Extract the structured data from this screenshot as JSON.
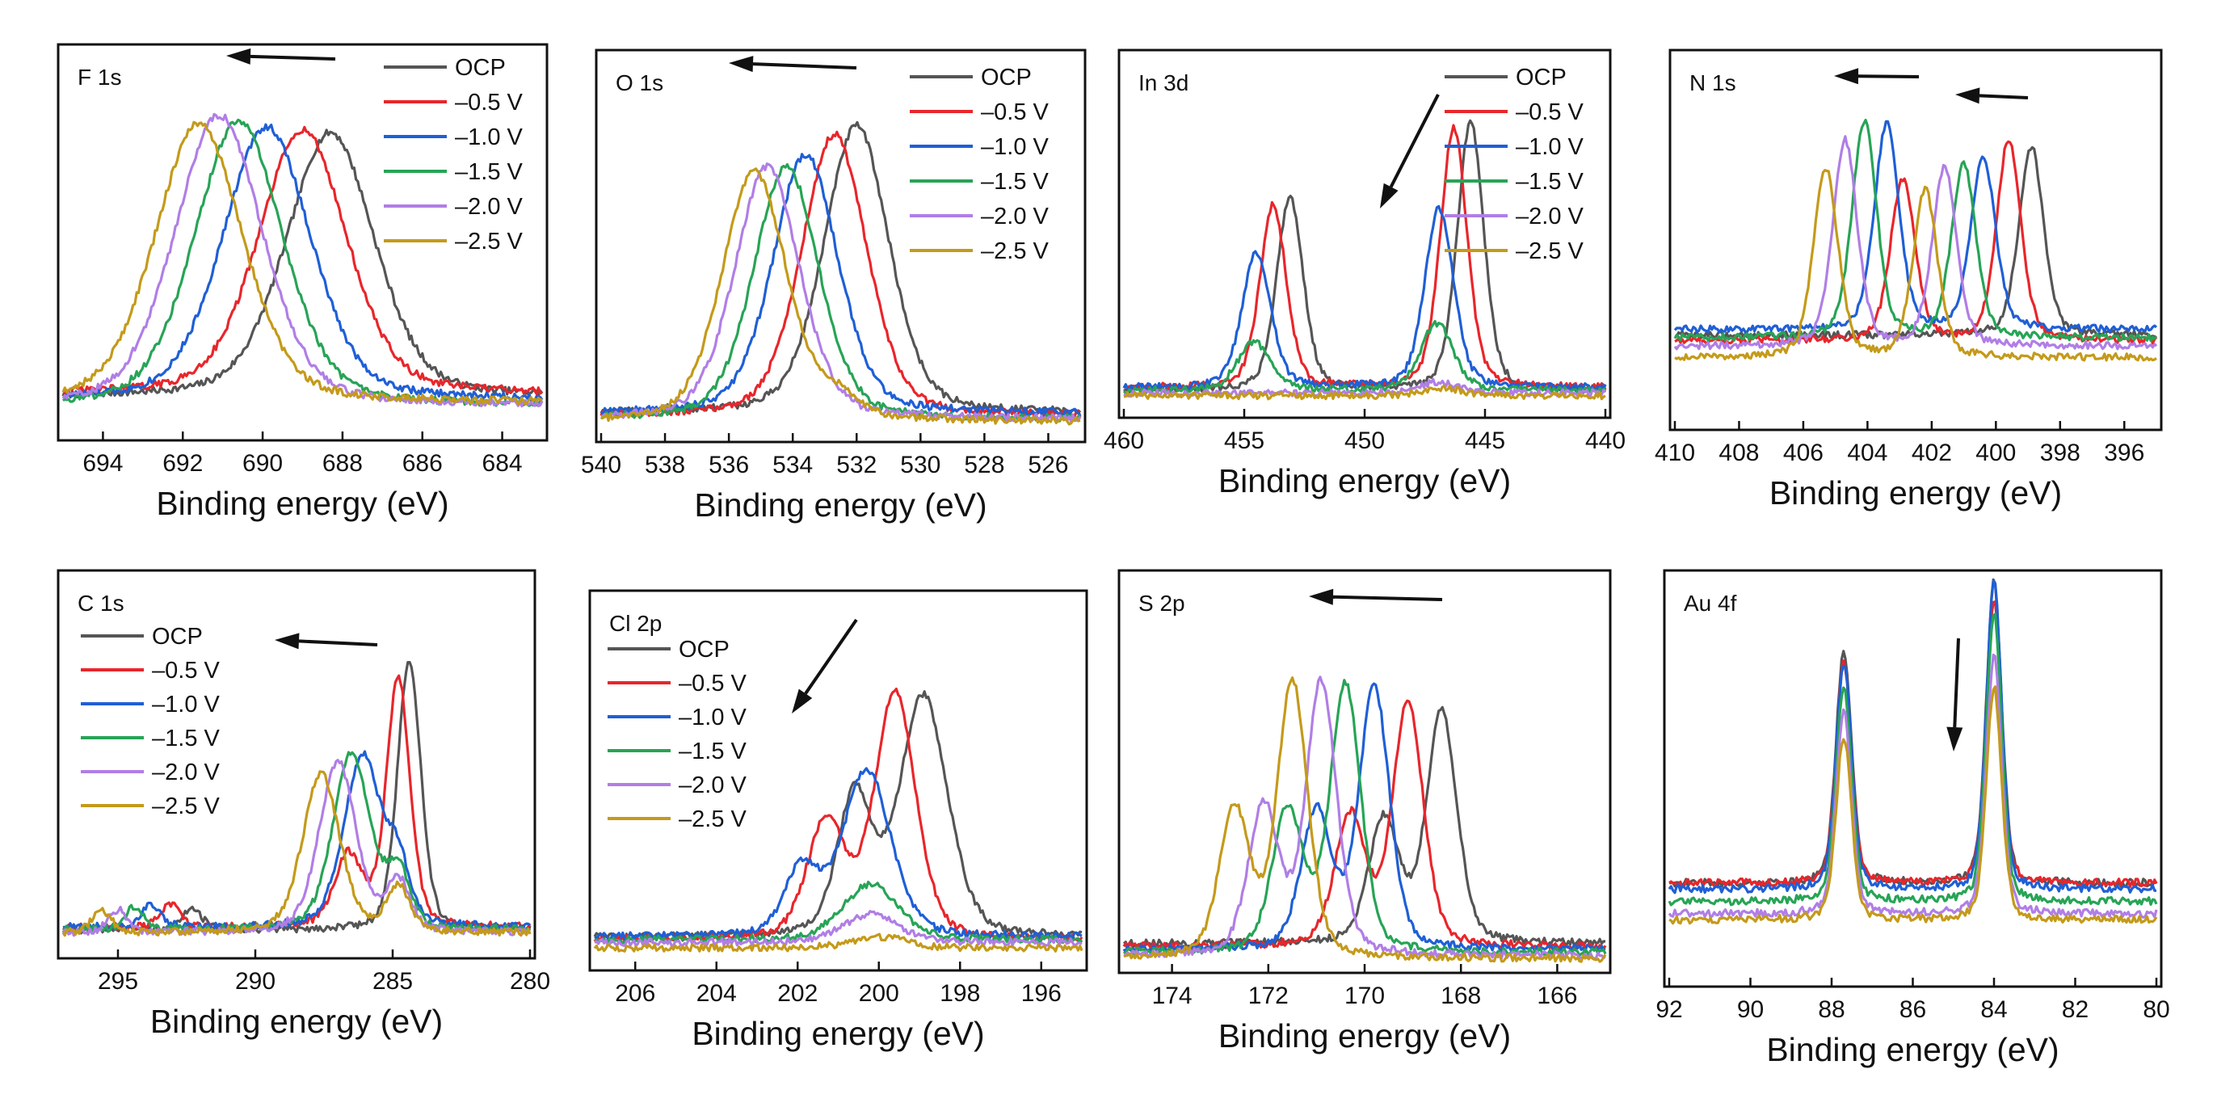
{
  "colors": {
    "OCP": "#555555",
    "-0.5 V": "#e8262b",
    "-1.0 V": "#1f5fd6",
    "-1.5 V": "#27a456",
    "-2.0 V": "#b07ee6",
    "-2.5 V": "#c49a1a"
  },
  "arrow_color": "#111111",
  "chart_data": [
    {
      "type": "line",
      "title": "F 1s",
      "xlabel": "Binding energy (eV)",
      "ylabel": "",
      "xlim": [
        695,
        683
      ],
      "ylim": [
        0,
        1.25
      ],
      "xticks": [
        694,
        692,
        690,
        688,
        686,
        684
      ],
      "xtick_labels": [
        "694",
        "692",
        "690",
        "688",
        "686",
        "684"
      ],
      "legend_position": "top-right",
      "annotation": "arrow pointing left",
      "series": [
        {
          "name": "OCP",
          "peaks": [
            {
              "center": 688.3,
              "height": 0.91,
              "width": 2.6
            }
          ],
          "baseline": 0.11
        },
        {
          "name": "–0.5 V",
          "peaks": [
            {
              "center": 689.0,
              "height": 0.91,
              "width": 2.6
            }
          ],
          "baseline": 0.12
        },
        {
          "name": "–1.0 V",
          "peaks": [
            {
              "center": 689.9,
              "height": 0.94,
              "width": 2.6
            }
          ],
          "baseline": 0.1
        },
        {
          "name": "–1.5 V",
          "peaks": [
            {
              "center": 690.6,
              "height": 0.98,
              "width": 2.6
            }
          ],
          "baseline": 0.08
        },
        {
          "name": "–2.0 V",
          "peaks": [
            {
              "center": 691.1,
              "height": 1.0,
              "width": 2.6
            }
          ],
          "baseline": 0.08
        },
        {
          "name": "–2.5 V",
          "peaks": [
            {
              "center": 691.6,
              "height": 0.96,
              "width": 2.6
            }
          ],
          "baseline": 0.09
        }
      ]
    },
    {
      "type": "line",
      "title": "O 1s",
      "xlabel": "Binding energy (eV)",
      "ylabel": "",
      "xlim": [
        540,
        525
      ],
      "ylim": [
        0,
        1.25
      ],
      "xticks": [
        540,
        538,
        536,
        534,
        532,
        530,
        528,
        526
      ],
      "xtick_labels": [
        "540",
        "538",
        "536",
        "534",
        "532",
        "530",
        "528",
        "526"
      ],
      "legend_position": "top-right",
      "annotation": "arrow pointing left",
      "series": [
        {
          "name": "OCP",
          "peaks": [
            {
              "center": 532.0,
              "height": 1.0,
              "width": 2.4
            }
          ],
          "baseline": 0.06
        },
        {
          "name": "–0.5 V",
          "peaks": [
            {
              "center": 532.7,
              "height": 0.98,
              "width": 2.4
            }
          ],
          "baseline": 0.05
        },
        {
          "name": "–1.0 V",
          "peaks": [
            {
              "center": 533.6,
              "height": 0.9,
              "width": 2.4
            }
          ],
          "baseline": 0.06
        },
        {
          "name": "–1.5 V",
          "peaks": [
            {
              "center": 534.2,
              "height": 0.88,
              "width": 2.4
            }
          ],
          "baseline": 0.04
        },
        {
          "name": "–2.0 V",
          "peaks": [
            {
              "center": 534.8,
              "height": 0.88,
              "width": 2.4
            }
          ],
          "baseline": 0.04
        },
        {
          "name": "–2.5 V",
          "peaks": [
            {
              "center": 535.2,
              "height": 0.87,
              "width": 2.4
            },
            {
              "center": 532.5,
              "height": 0.07,
              "width": 1.5
            }
          ],
          "baseline": 0.03
        }
      ]
    },
    {
      "type": "line",
      "title": "In 3d",
      "xlabel": "Binding energy (eV)",
      "ylabel": "",
      "xlim": [
        460,
        440
      ],
      "ylim": [
        0,
        1.25
      ],
      "xticks": [
        460,
        455,
        450,
        445,
        440
      ],
      "xtick_labels": [
        "460",
        "455",
        "450",
        "445",
        "440"
      ],
      "legend_position": "top-right",
      "annotation": "arrow pointing down-left",
      "series": [
        {
          "name": "OCP",
          "peaks": [
            {
              "center": 445.6,
              "height": 1.0,
              "width": 1.3
            },
            {
              "center": 453.1,
              "height": 0.72,
              "width": 1.3
            }
          ],
          "baseline": 0.06
        },
        {
          "name": "–0.5 V",
          "peaks": [
            {
              "center": 446.3,
              "height": 0.97,
              "width": 1.3
            },
            {
              "center": 453.8,
              "height": 0.68,
              "width": 1.3
            }
          ],
          "baseline": 0.07
        },
        {
          "name": "–1.0 V",
          "peaks": [
            {
              "center": 446.9,
              "height": 0.67,
              "width": 1.4
            },
            {
              "center": 454.5,
              "height": 0.5,
              "width": 1.4
            }
          ],
          "baseline": 0.07
        },
        {
          "name": "–1.5 V",
          "peaks": [
            {
              "center": 447.0,
              "height": 0.25,
              "width": 1.6
            },
            {
              "center": 454.6,
              "height": 0.18,
              "width": 1.6
            }
          ],
          "baseline": 0.06
        },
        {
          "name": "–2.0 V",
          "peaks": [
            {
              "center": 447.0,
              "height": 0.04,
              "width": 2.0
            }
          ],
          "baseline": 0.05
        },
        {
          "name": "–2.5 V",
          "peaks": [
            {
              "center": 446.8,
              "height": 0.03,
              "width": 2.0
            }
          ],
          "baseline": 0.04
        }
      ]
    },
    {
      "type": "line",
      "title": "N 1s",
      "xlabel": "Binding energy (eV)",
      "ylabel": "",
      "xlim": [
        410,
        395
      ],
      "ylim": [
        0,
        1.25
      ],
      "xticks": [
        410,
        408,
        406,
        404,
        402,
        400,
        398,
        396
      ],
      "xtick_labels": [
        "410",
        "408",
        "406",
        "404",
        "402",
        "400",
        "398",
        "396"
      ],
      "legend_position": "none",
      "annotation": "two arrows pointing left",
      "series": [
        {
          "name": "OCP",
          "peaks": [
            {
              "center": 398.9,
              "height": 0.68,
              "width": 0.9
            }
          ],
          "baseline": 0.3
        },
        {
          "name": "–0.5 V",
          "peaks": [
            {
              "center": 399.6,
              "height": 0.72,
              "width": 0.9
            },
            {
              "center": 402.9,
              "height": 0.58,
              "width": 0.9
            }
          ],
          "baseline": 0.28
        },
        {
          "name": "–1.0 V",
          "peaks": [
            {
              "center": 400.4,
              "height": 0.62,
              "width": 0.9
            },
            {
              "center": 403.4,
              "height": 0.74,
              "width": 0.9
            }
          ],
          "baseline": 0.32
        },
        {
          "name": "–1.5 V",
          "peaks": [
            {
              "center": 401.0,
              "height": 0.62,
              "width": 0.9
            },
            {
              "center": 404.1,
              "height": 0.78,
              "width": 0.9
            }
          ],
          "baseline": 0.29
        },
        {
          "name": "–2.0 V",
          "peaks": [
            {
              "center": 401.6,
              "height": 0.64,
              "width": 0.9
            },
            {
              "center": 404.7,
              "height": 0.74,
              "width": 0.9
            }
          ],
          "baseline": 0.26
        },
        {
          "name": "–2.5 V",
          "peaks": [
            {
              "center": 402.2,
              "height": 0.6,
              "width": 0.9
            },
            {
              "center": 405.3,
              "height": 0.68,
              "width": 0.9
            }
          ],
          "baseline": 0.22
        }
      ]
    },
    {
      "type": "line",
      "title": "C 1s",
      "xlabel": "Binding energy (eV)",
      "ylabel": "",
      "xlim": [
        297,
        280
      ],
      "ylim": [
        0,
        1.25
      ],
      "xticks": [
        295,
        290,
        285,
        280
      ],
      "xtick_labels": [
        "295",
        "290",
        "285",
        "280"
      ],
      "legend_position": "top-left",
      "annotation": "arrow pointing left",
      "series": [
        {
          "name": "OCP",
          "peaks": [
            {
              "center": 284.4,
              "height": 0.95,
              "width": 1.0
            },
            {
              "center": 292.3,
              "height": 0.08,
              "width": 0.8
            }
          ],
          "baseline": 0.06
        },
        {
          "name": "–0.5 V",
          "peaks": [
            {
              "center": 284.8,
              "height": 0.88,
              "width": 1.0
            },
            {
              "center": 286.6,
              "height": 0.25,
              "width": 1.2
            },
            {
              "center": 293.1,
              "height": 0.08,
              "width": 0.8
            }
          ],
          "baseline": 0.07
        },
        {
          "name": "–1.0 V",
          "peaks": [
            {
              "center": 284.8,
              "height": 0.2,
              "width": 1.0
            },
            {
              "center": 286.1,
              "height": 0.6,
              "width": 1.6
            },
            {
              "center": 293.8,
              "height": 0.08,
              "width": 0.8
            }
          ],
          "baseline": 0.07
        },
        {
          "name": "–1.5 V",
          "peaks": [
            {
              "center": 284.8,
              "height": 0.2,
              "width": 1.0
            },
            {
              "center": 286.5,
              "height": 0.62,
              "width": 1.6
            },
            {
              "center": 294.4,
              "height": 0.08,
              "width": 0.8
            }
          ],
          "baseline": 0.06
        },
        {
          "name": "–2.0 V",
          "peaks": [
            {
              "center": 284.8,
              "height": 0.18,
              "width": 1.0
            },
            {
              "center": 287.0,
              "height": 0.6,
              "width": 1.6
            },
            {
              "center": 295.0,
              "height": 0.08,
              "width": 0.8
            }
          ],
          "baseline": 0.05
        },
        {
          "name": "–2.5 V",
          "peaks": [
            {
              "center": 284.8,
              "height": 0.16,
              "width": 1.0
            },
            {
              "center": 287.6,
              "height": 0.56,
              "width": 1.6
            },
            {
              "center": 295.6,
              "height": 0.08,
              "width": 0.8
            }
          ],
          "baseline": 0.05
        }
      ]
    },
    {
      "type": "line",
      "title": "Cl 2p",
      "xlabel": "Binding energy (eV)",
      "ylabel": "",
      "xlim": [
        207,
        195
      ],
      "ylim": [
        0,
        1.25
      ],
      "xticks": [
        206,
        204,
        202,
        200,
        198,
        196
      ],
      "xtick_labels": [
        "206",
        "204",
        "202",
        "200",
        "198",
        "196"
      ],
      "legend_position": "top-left",
      "annotation": "arrow pointing down-left",
      "series": [
        {
          "name": "OCP",
          "peaks": [
            {
              "center": 198.9,
              "height": 0.86,
              "width": 1.4
            },
            {
              "center": 200.6,
              "height": 0.5,
              "width": 1.0
            }
          ],
          "baseline": 0.08
        },
        {
          "name": "–0.5 V",
          "peaks": [
            {
              "center": 199.6,
              "height": 0.88,
              "width": 1.2
            },
            {
              "center": 201.3,
              "height": 0.42,
              "width": 1.1
            }
          ],
          "baseline": 0.07
        },
        {
          "name": "–1.0 V",
          "peaks": [
            {
              "center": 200.3,
              "height": 0.6,
              "width": 1.4
            },
            {
              "center": 201.9,
              "height": 0.24,
              "width": 1.0
            }
          ],
          "baseline": 0.08
        },
        {
          "name": "–1.5 V",
          "peaks": [
            {
              "center": 200.2,
              "height": 0.2,
              "width": 1.6
            }
          ],
          "baseline": 0.07
        },
        {
          "name": "–2.0 V",
          "peaks": [
            {
              "center": 200.2,
              "height": 0.1,
              "width": 1.6
            }
          ],
          "baseline": 0.06
        },
        {
          "name": "–2.5 V",
          "peaks": [
            {
              "center": 200.0,
              "height": 0.04,
              "width": 1.6
            }
          ],
          "baseline": 0.04
        }
      ]
    },
    {
      "type": "line",
      "title": "S 2p",
      "xlabel": "Binding energy (eV)",
      "ylabel": "",
      "xlim": [
        175,
        165
      ],
      "ylim": [
        0,
        1.25
      ],
      "xticks": [
        174,
        172,
        170,
        168,
        166
      ],
      "xtick_labels": [
        "174",
        "172",
        "170",
        "168",
        "166"
      ],
      "legend_position": "none",
      "annotation": "arrow pointing left",
      "series": [
        {
          "name": "OCP",
          "peaks": [
            {
              "center": 168.4,
              "height": 0.78,
              "width": 0.75
            },
            {
              "center": 169.6,
              "height": 0.42,
              "width": 0.75
            }
          ],
          "baseline": 0.06
        },
        {
          "name": "–0.5 V",
          "peaks": [
            {
              "center": 169.1,
              "height": 0.82,
              "width": 0.75
            },
            {
              "center": 170.3,
              "height": 0.44,
              "width": 0.75
            }
          ],
          "baseline": 0.05
        },
        {
          "name": "–1.0 V",
          "peaks": [
            {
              "center": 169.8,
              "height": 0.88,
              "width": 0.75
            },
            {
              "center": 171.0,
              "height": 0.46,
              "width": 0.75
            }
          ],
          "baseline": 0.04
        },
        {
          "name": "–1.5 V",
          "peaks": [
            {
              "center": 170.4,
              "height": 0.9,
              "width": 0.75
            },
            {
              "center": 171.6,
              "height": 0.48,
              "width": 0.75
            }
          ],
          "baseline": 0.03
        },
        {
          "name": "–2.0 V",
          "peaks": [
            {
              "center": 170.9,
              "height": 0.92,
              "width": 0.75
            },
            {
              "center": 172.1,
              "height": 0.5,
              "width": 0.75
            }
          ],
          "baseline": 0.02
        },
        {
          "name": "–2.5 V",
          "peaks": [
            {
              "center": 171.5,
              "height": 0.93,
              "width": 0.75
            },
            {
              "center": 172.7,
              "height": 0.5,
              "width": 0.75
            }
          ],
          "baseline": 0.01
        }
      ]
    },
    {
      "type": "line",
      "title": "Au 4f",
      "xlabel": "Binding energy (eV)",
      "ylabel": "",
      "xlim": [
        92,
        80
      ],
      "ylim": [
        0,
        1.25
      ],
      "xticks": [
        92,
        90,
        88,
        86,
        84,
        82,
        80
      ],
      "xtick_labels": [
        "92",
        "90",
        "88",
        "86",
        "84",
        "82",
        "80"
      ],
      "legend_position": "none",
      "annotation": "arrow pointing down",
      "series": [
        {
          "name": "OCP",
          "peaks": [
            {
              "center": 87.7,
              "height": 0.76,
              "width": 0.45
            },
            {
              "center": 84.0,
              "height": 0.98,
              "width": 0.45
            }
          ],
          "baseline": 0.3
        },
        {
          "name": "–0.5 V",
          "peaks": [
            {
              "center": 87.7,
              "height": 0.72,
              "width": 0.45
            },
            {
              "center": 84.0,
              "height": 0.92,
              "width": 0.45
            }
          ],
          "baseline": 0.3
        },
        {
          "name": "–1.0 V",
          "peaks": [
            {
              "center": 87.7,
              "height": 0.74,
              "width": 0.45
            },
            {
              "center": 84.0,
              "height": 1.0,
              "width": 0.45
            }
          ],
          "baseline": 0.28
        },
        {
          "name": "–1.5 V",
          "peaks": [
            {
              "center": 87.7,
              "height": 0.7,
              "width": 0.45
            },
            {
              "center": 84.0,
              "height": 0.94,
              "width": 0.45
            }
          ],
          "baseline": 0.24
        },
        {
          "name": "–2.0 V",
          "peaks": [
            {
              "center": 87.7,
              "height": 0.66,
              "width": 0.45
            },
            {
              "center": 84.0,
              "height": 0.84,
              "width": 0.45
            }
          ],
          "baseline": 0.2
        },
        {
          "name": "–2.5 V",
          "peaks": [
            {
              "center": 87.7,
              "height": 0.6,
              "width": 0.45
            },
            {
              "center": 84.0,
              "height": 0.76,
              "width": 0.45
            }
          ],
          "baseline": 0.18
        }
      ]
    }
  ]
}
